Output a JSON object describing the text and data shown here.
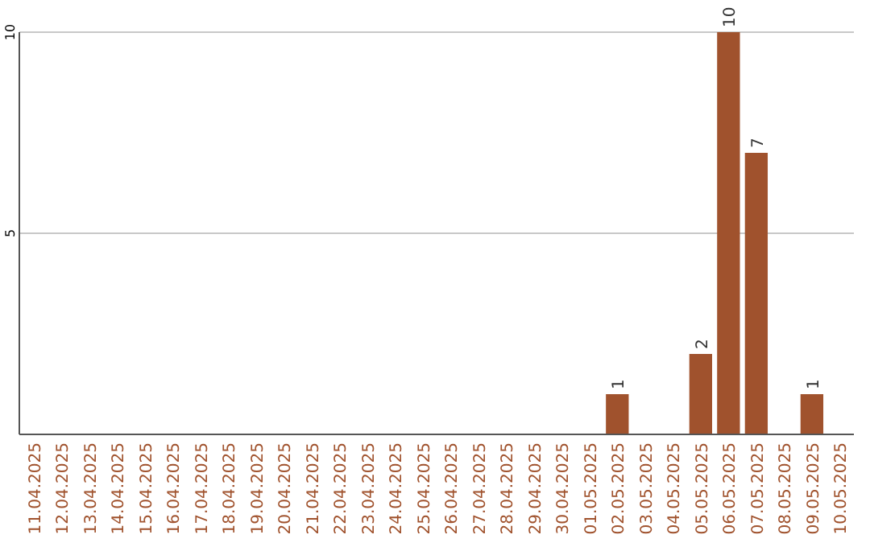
{
  "chart_data": {
    "type": "bar",
    "categories": [
      "11.04.2025",
      "12.04.2025",
      "13.04.2025",
      "14.04.2025",
      "15.04.2025",
      "16.04.2025",
      "17.04.2025",
      "18.04.2025",
      "19.04.2025",
      "20.04.2025",
      "21.04.2025",
      "22.04.2025",
      "23.04.2025",
      "24.04.2025",
      "25.04.2025",
      "26.04.2025",
      "27.04.2025",
      "28.04.2025",
      "29.04.2025",
      "30.04.2025",
      "01.05.2025",
      "02.05.2025",
      "03.05.2025",
      "04.05.2025",
      "05.05.2025",
      "06.05.2025",
      "07.05.2025",
      "08.05.2025",
      "09.05.2025",
      "10.05.2025"
    ],
    "values": [
      0,
      0,
      0,
      0,
      0,
      0,
      0,
      0,
      0,
      0,
      0,
      0,
      0,
      0,
      0,
      0,
      0,
      0,
      0,
      0,
      0,
      1,
      0,
      0,
      2,
      10,
      7,
      0,
      1,
      0
    ],
    "value_labels": [
      null,
      null,
      null,
      null,
      null,
      null,
      null,
      null,
      null,
      null,
      null,
      null,
      null,
      null,
      null,
      null,
      null,
      null,
      null,
      null,
      null,
      "1",
      null,
      null,
      "2",
      "10",
      "7",
      null,
      "1",
      null
    ],
    "color": "#a0522d",
    "ylim": [
      0,
      10
    ],
    "yticks": [
      5,
      10
    ],
    "grid": "y"
  }
}
